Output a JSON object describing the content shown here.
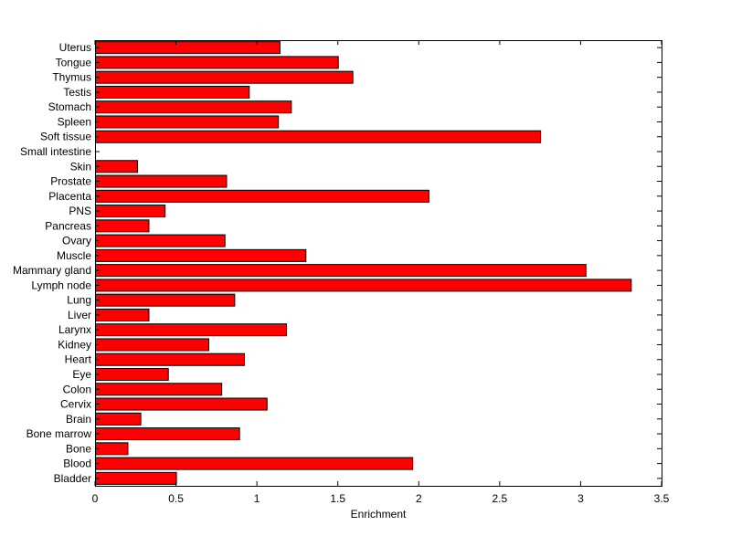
{
  "chart_data": {
    "type": "bar",
    "orientation": "horizontal",
    "xlabel": "Enrichment",
    "ylabel": "",
    "xlim": [
      0,
      3.5
    ],
    "xticks": [
      {
        "value": 0,
        "label": "0"
      },
      {
        "value": 0.5,
        "label": "0.5"
      },
      {
        "value": 1,
        "label": "1"
      },
      {
        "value": 1.5,
        "label": "1.5"
      },
      {
        "value": 2,
        "label": "2"
      },
      {
        "value": 2.5,
        "label": "2.5"
      },
      {
        "value": 3,
        "label": "3"
      },
      {
        "value": 3.5,
        "label": "3.5"
      }
    ],
    "grid": false,
    "bar_color": "#ff0000",
    "categories": [
      "Bladder",
      "Blood",
      "Bone",
      "Bone marrow",
      "Brain",
      "Cervix",
      "Colon",
      "Eye",
      "Heart",
      "Kidney",
      "Larynx",
      "Liver",
      "Lung",
      "Lymph node",
      "Mammary gland",
      "Muscle",
      "Ovary",
      "Pancreas",
      "PNS",
      "Placenta",
      "Prostate",
      "Skin",
      "Small intestine",
      "Soft tissue",
      "Spleen",
      "Stomach",
      "Testis",
      "Thymus",
      "Tongue",
      "Uterus"
    ],
    "values": [
      0.5,
      1.96,
      0.2,
      0.89,
      0.28,
      1.06,
      0.78,
      0.45,
      0.92,
      0.7,
      1.18,
      0.33,
      0.86,
      3.31,
      3.03,
      1.3,
      0.8,
      0.33,
      0.43,
      2.06,
      0.81,
      0.26,
      0.0,
      2.75,
      1.13,
      1.21,
      0.95,
      1.59,
      1.5,
      1.14
    ]
  }
}
